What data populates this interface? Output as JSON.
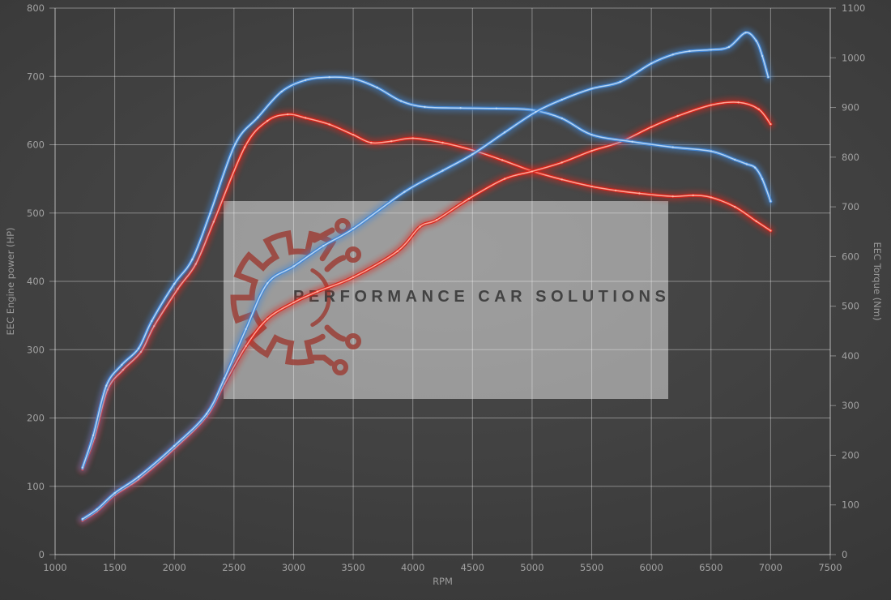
{
  "watermark": {
    "text": "PERFORMANCE CAR SOLUTIONS",
    "logo_icon": "gear-circuit-icon"
  },
  "colors": {
    "background": "#3e3e3e",
    "grid": "rgba(255,255,255,0.38)",
    "tick_label": "#a2a2a2",
    "axis_title": "#9a9a9a",
    "blue_line": "#4287d6",
    "blue_core": "#c3ddf6",
    "red_line": "#dc251b",
    "red_core": "#ffb4a4",
    "watermark_bg": "rgba(255,255,255,0.46)",
    "logo_red": "#9c4038",
    "brand_text": "#3b3b3b"
  },
  "chart_data": {
    "type": "line",
    "xlabel": "RPM",
    "ylabel_left": "EEC Engine power (HP)",
    "ylabel_right": "EEC Torque (Nm)",
    "x_range": [
      1000,
      7500
    ],
    "left_range": [
      0,
      800
    ],
    "right_range": [
      0,
      1100
    ],
    "grid": true,
    "legend": false,
    "x_ticks": [
      1000,
      1500,
      2000,
      2500,
      3000,
      3500,
      4000,
      4500,
      5000,
      5500,
      6000,
      6500,
      7000,
      7500
    ],
    "left_ticks": [
      0,
      100,
      200,
      300,
      400,
      500,
      600,
      700,
      800
    ],
    "right_ticks": [
      0,
      100,
      200,
      300,
      400,
      500,
      600,
      700,
      800,
      900,
      1000,
      1100
    ],
    "series": [
      {
        "name": "torque-red",
        "axis": "right",
        "color": "red",
        "points": [
          [
            1230,
            172
          ],
          [
            1330,
            235
          ],
          [
            1440,
            332
          ],
          [
            1570,
            372
          ],
          [
            1720,
            408
          ],
          [
            1830,
            460
          ],
          [
            2030,
            535
          ],
          [
            2180,
            585
          ],
          [
            2330,
            670
          ],
          [
            2590,
            820
          ],
          [
            2780,
            873
          ],
          [
            2950,
            886
          ],
          [
            3100,
            879
          ],
          [
            3300,
            866
          ],
          [
            3500,
            845
          ],
          [
            3650,
            829
          ],
          [
            3820,
            832
          ],
          [
            4000,
            838
          ],
          [
            4250,
            829
          ],
          [
            4500,
            814
          ],
          [
            4750,
            794
          ],
          [
            5000,
            772
          ],
          [
            5250,
            755
          ],
          [
            5500,
            741
          ],
          [
            5700,
            733
          ],
          [
            5900,
            727
          ],
          [
            6180,
            721
          ],
          [
            6350,
            723
          ],
          [
            6500,
            719
          ],
          [
            6700,
            700
          ],
          [
            6880,
            671
          ],
          [
            7000,
            652
          ]
        ]
      },
      {
        "name": "power-red",
        "axis": "left",
        "color": "red",
        "points": [
          [
            1230,
            50
          ],
          [
            1350,
            63
          ],
          [
            1500,
            87
          ],
          [
            1700,
            110
          ],
          [
            2000,
            155
          ],
          [
            2270,
            202
          ],
          [
            2420,
            250
          ],
          [
            2600,
            305
          ],
          [
            2780,
            345
          ],
          [
            3000,
            369
          ],
          [
            3200,
            385
          ],
          [
            3500,
            406
          ],
          [
            3870,
            444
          ],
          [
            4060,
            480
          ],
          [
            4200,
            490
          ],
          [
            4470,
            521
          ],
          [
            4770,
            550
          ],
          [
            5000,
            561
          ],
          [
            5250,
            574
          ],
          [
            5500,
            591
          ],
          [
            5740,
            604
          ],
          [
            6000,
            626
          ],
          [
            6220,
            642
          ],
          [
            6500,
            658
          ],
          [
            6730,
            662
          ],
          [
            6900,
            652
          ],
          [
            7000,
            630
          ]
        ]
      },
      {
        "name": "torque-blue",
        "axis": "right",
        "color": "blue",
        "points": [
          [
            1230,
            175
          ],
          [
            1320,
            240
          ],
          [
            1430,
            340
          ],
          [
            1560,
            382
          ],
          [
            1700,
            415
          ],
          [
            1810,
            470
          ],
          [
            2000,
            545
          ],
          [
            2150,
            594
          ],
          [
            2300,
            687
          ],
          [
            2510,
            826
          ],
          [
            2700,
            880
          ],
          [
            2900,
            932
          ],
          [
            3100,
            955
          ],
          [
            3300,
            961
          ],
          [
            3500,
            958
          ],
          [
            3700,
            940
          ],
          [
            3900,
            913
          ],
          [
            4100,
            901
          ],
          [
            4400,
            899
          ],
          [
            4700,
            898
          ],
          [
            5000,
            895
          ],
          [
            5250,
            878
          ],
          [
            5500,
            845
          ],
          [
            5840,
            831
          ],
          [
            6180,
            820
          ],
          [
            6500,
            812
          ],
          [
            6700,
            795
          ],
          [
            6800,
            786
          ],
          [
            6870,
            779
          ],
          [
            6930,
            756
          ],
          [
            7000,
            711
          ]
        ]
      },
      {
        "name": "power-blue",
        "axis": "left",
        "color": "blue",
        "points": [
          [
            1230,
            52
          ],
          [
            1350,
            66
          ],
          [
            1500,
            90
          ],
          [
            1700,
            114
          ],
          [
            2000,
            159
          ],
          [
            2270,
            206
          ],
          [
            2420,
            258
          ],
          [
            2600,
            330
          ],
          [
            2780,
            397
          ],
          [
            3000,
            422
          ],
          [
            3250,
            452
          ],
          [
            3500,
            477
          ],
          [
            3930,
            531
          ],
          [
            4250,
            562
          ],
          [
            4500,
            586
          ],
          [
            4770,
            618
          ],
          [
            5030,
            648
          ],
          [
            5250,
            666
          ],
          [
            5500,
            682
          ],
          [
            5740,
            692
          ],
          [
            6000,
            719
          ],
          [
            6180,
            732
          ],
          [
            6320,
            737
          ],
          [
            6500,
            739
          ],
          [
            6650,
            743
          ],
          [
            6790,
            764
          ],
          [
            6880,
            752
          ],
          [
            6930,
            730
          ],
          [
            6980,
            699
          ]
        ]
      }
    ]
  }
}
